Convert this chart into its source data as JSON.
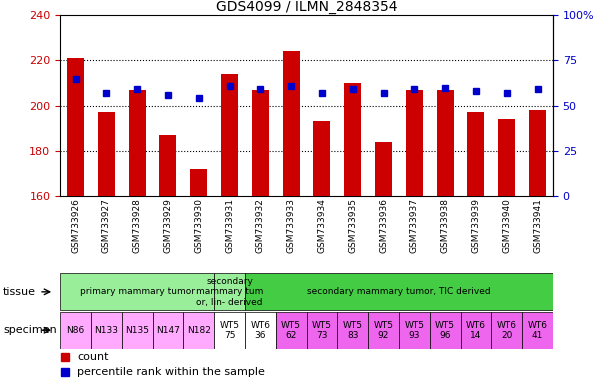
{
  "title": "GDS4099 / ILMN_2848354",
  "samples": [
    "GSM733926",
    "GSM733927",
    "GSM733928",
    "GSM733929",
    "GSM733930",
    "GSM733931",
    "GSM733932",
    "GSM733933",
    "GSM733934",
    "GSM733935",
    "GSM733936",
    "GSM733937",
    "GSM733938",
    "GSM733939",
    "GSM733940",
    "GSM733941"
  ],
  "counts": [
    221,
    197,
    207,
    187,
    172,
    214,
    207,
    224,
    193,
    210,
    184,
    207,
    207,
    197,
    194,
    198
  ],
  "percentiles": [
    65,
    57,
    59,
    56,
    54,
    61,
    59,
    61,
    57,
    59,
    57,
    59,
    60,
    58,
    57,
    59
  ],
  "ylim_left": [
    160,
    240
  ],
  "yticks_left": [
    160,
    180,
    200,
    220,
    240
  ],
  "ylim_right": [
    0,
    100
  ],
  "yticks_right": [
    0,
    25,
    50,
    75,
    100
  ],
  "bar_color": "#cc0000",
  "dot_color": "#0000cc",
  "tissue_data": [
    {
      "label": "primary mammary tumor",
      "start": 0,
      "end": 4,
      "color": "#99ee99"
    },
    {
      "label": "secondary\nmammary tum\nor, lin- derived",
      "start": 5,
      "end": 5,
      "color": "#99ee99"
    },
    {
      "label": "secondary mammary tumor, TIC derived",
      "start": 6,
      "end": 15,
      "color": "#44cc44"
    }
  ],
  "specimen_data": [
    {
      "label": "N86",
      "start": 0,
      "end": 0,
      "color": "#ffaaff"
    },
    {
      "label": "N133",
      "start": 1,
      "end": 1,
      "color": "#ffaaff"
    },
    {
      "label": "N135",
      "start": 2,
      "end": 2,
      "color": "#ffaaff"
    },
    {
      "label": "N147",
      "start": 3,
      "end": 3,
      "color": "#ffaaff"
    },
    {
      "label": "N182",
      "start": 4,
      "end": 4,
      "color": "#ffaaff"
    },
    {
      "label": "WT5\n75",
      "start": 5,
      "end": 5,
      "color": "#ffffff"
    },
    {
      "label": "WT6\n36",
      "start": 6,
      "end": 6,
      "color": "#ffffff"
    },
    {
      "label": "WT5\n62",
      "start": 7,
      "end": 7,
      "color": "#ee66ee"
    },
    {
      "label": "WT5\n73",
      "start": 8,
      "end": 8,
      "color": "#ee66ee"
    },
    {
      "label": "WT5\n83",
      "start": 9,
      "end": 9,
      "color": "#ee66ee"
    },
    {
      "label": "WT5\n92",
      "start": 10,
      "end": 10,
      "color": "#ee66ee"
    },
    {
      "label": "WT5\n93",
      "start": 11,
      "end": 11,
      "color": "#ee66ee"
    },
    {
      "label": "WT5\n96",
      "start": 12,
      "end": 12,
      "color": "#ee66ee"
    },
    {
      "label": "WT6\n14",
      "start": 13,
      "end": 13,
      "color": "#ee66ee"
    },
    {
      "label": "WT6\n20",
      "start": 14,
      "end": 14,
      "color": "#ee66ee"
    },
    {
      "label": "WT6\n41",
      "start": 15,
      "end": 15,
      "color": "#ee66ee"
    }
  ],
  "legend_count_color": "#cc0000",
  "legend_pct_color": "#0000cc",
  "left_col_color": "#cc0000",
  "right_col_color": "#0000cc",
  "bg_color": "#ffffff",
  "xtick_bg_color": "#cccccc"
}
